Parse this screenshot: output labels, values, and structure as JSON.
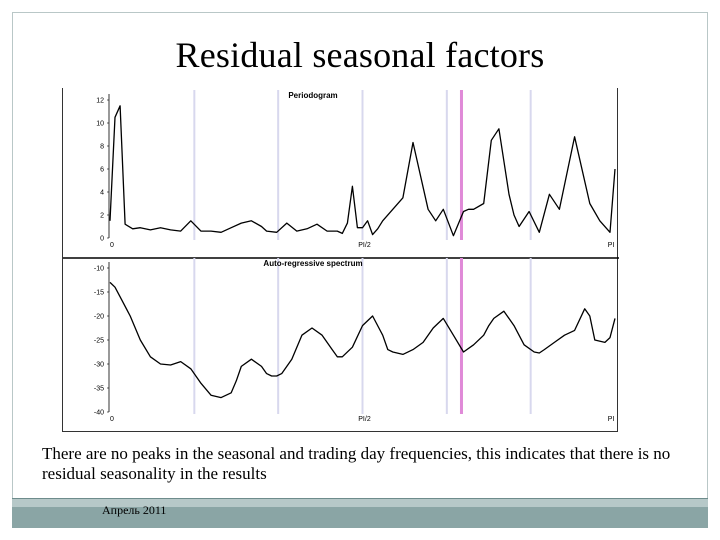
{
  "slide": {
    "title": "Residual seasonal factors",
    "caption": "There are no peaks in the seasonal and trading day frequencies, this indicates that there is no residual seasonality in the results",
    "date": "Апрель 2011"
  },
  "colors": {
    "line": "#000000",
    "seasonal_marker": "#d8d8ee",
    "trading_day_marker": "#e08ad8",
    "footer": "#8aa5a5"
  },
  "chart_data": [
    {
      "type": "line",
      "title": "Periodogram",
      "xlim": [
        0,
        1
      ],
      "ylim": [
        0,
        12
      ],
      "x_tick_labels": [
        "0",
        "PI/2",
        "PI"
      ],
      "y_tick_labels": [
        "12",
        "10",
        "8",
        "6",
        "4",
        "2",
        "0"
      ],
      "seasonal_frequencies": [
        0.167,
        0.333,
        0.5,
        0.667,
        0.833
      ],
      "trading_day_frequency": 0.696,
      "series": [
        {
          "x": [
            0,
            0.01,
            0.02,
            0.03,
            0.045,
            0.06,
            0.08,
            0.1,
            0.12,
            0.14,
            0.16,
            0.18,
            0.2,
            0.22,
            0.24,
            0.26,
            0.28,
            0.3,
            0.31,
            0.33,
            0.35,
            0.37,
            0.39,
            0.41,
            0.43,
            0.45,
            0.46,
            0.47,
            0.48,
            0.49,
            0.5,
            0.51,
            0.52,
            0.53,
            0.54,
            0.56,
            0.58,
            0.6,
            0.63,
            0.645,
            0.66,
            0.68,
            0.7,
            0.71,
            0.72,
            0.74,
            0.755,
            0.77,
            0.79,
            0.8,
            0.81,
            0.83,
            0.85,
            0.87,
            0.89,
            0.92,
            0.95,
            0.97,
            0.99,
            1.0
          ],
          "y": [
            1.5,
            10.5,
            11.5,
            1.2,
            0.8,
            0.9,
            0.7,
            0.9,
            0.7,
            0.6,
            1.5,
            0.6,
            0.6,
            0.5,
            0.9,
            1.3,
            1.5,
            1.0,
            0.6,
            0.5,
            1.3,
            0.6,
            0.8,
            1.2,
            0.6,
            0.6,
            0.4,
            1.3,
            4.5,
            0.9,
            0.9,
            1.5,
            0.3,
            0.8,
            1.5,
            2.5,
            3.5,
            8.3,
            2.5,
            1.5,
            2.5,
            0.2,
            2.3,
            2.5,
            2.5,
            3.0,
            8.5,
            9.5,
            3.8,
            2.0,
            1.0,
            2.3,
            0.5,
            3.8,
            2.5,
            8.8,
            3.0,
            1.5,
            0.5,
            6.0
          ]
        }
      ]
    },
    {
      "type": "line",
      "title": "Auto-regressive spectrum",
      "xlim": [
        0,
        1
      ],
      "ylim": [
        -40,
        -10
      ],
      "x_tick_labels": [
        "0",
        "PI/2",
        "PI"
      ],
      "y_tick_labels": [
        "-10",
        "-15",
        "-20",
        "-25",
        "-30",
        "-35",
        "-40"
      ],
      "seasonal_frequencies": [
        0.167,
        0.333,
        0.5,
        0.667,
        0.833
      ],
      "trading_day_frequency": 0.696,
      "series": [
        {
          "x": [
            0,
            0.01,
            0.02,
            0.04,
            0.06,
            0.08,
            0.1,
            0.12,
            0.14,
            0.16,
            0.18,
            0.2,
            0.22,
            0.24,
            0.25,
            0.26,
            0.28,
            0.3,
            0.31,
            0.32,
            0.33,
            0.34,
            0.36,
            0.38,
            0.4,
            0.42,
            0.44,
            0.45,
            0.46,
            0.48,
            0.5,
            0.52,
            0.54,
            0.55,
            0.56,
            0.58,
            0.6,
            0.62,
            0.64,
            0.66,
            0.68,
            0.7,
            0.72,
            0.74,
            0.75,
            0.76,
            0.78,
            0.8,
            0.82,
            0.84,
            0.85,
            0.86,
            0.88,
            0.9,
            0.92,
            0.94,
            0.95,
            0.96,
            0.98,
            0.99,
            1.0
          ],
          "y": [
            -13,
            -14,
            -16,
            -20,
            -25,
            -28.5,
            -30,
            -30.2,
            -29.5,
            -31,
            -34,
            -36.5,
            -37,
            -36,
            -33.5,
            -30.5,
            -29,
            -30.5,
            -32,
            -32.5,
            -32.5,
            -32,
            -29,
            -24,
            -22.5,
            -24,
            -27,
            -28.5,
            -28.5,
            -26.5,
            -22,
            -20,
            -24,
            -27,
            -27.5,
            -28,
            -27,
            -25.5,
            -22.5,
            -20.5,
            -24,
            -27.5,
            -26,
            -24,
            -22,
            -20.5,
            -19,
            -22,
            -26,
            -27.5,
            -27.7,
            -27,
            -25.5,
            -24,
            -23,
            -18.5,
            -20,
            -25,
            -25.5,
            -24.5,
            -20.5
          ]
        }
      ]
    }
  ]
}
